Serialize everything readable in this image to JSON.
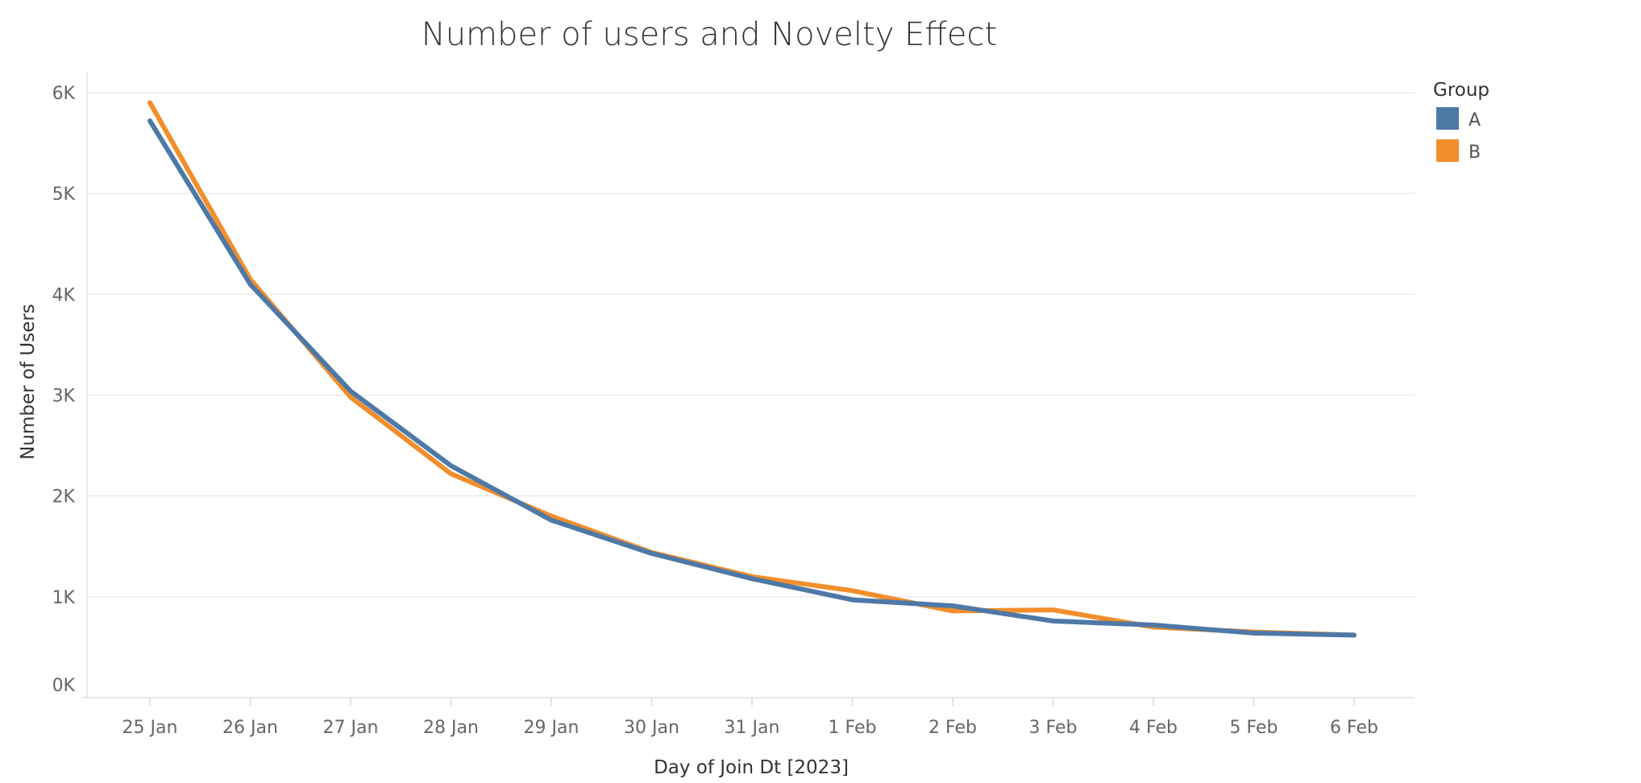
{
  "chart_data": {
    "type": "line",
    "title": "Number of users and Novelty Effect",
    "xlabel": "Day of Join Dt [2023]",
    "ylabel": "Number of Users",
    "categories": [
      "25 Jan",
      "26 Jan",
      "27 Jan",
      "28 Jan",
      "29 Jan",
      "30 Jan",
      "31 Jan",
      "1 Feb",
      "2 Feb",
      "3 Feb",
      "4 Feb",
      "5 Feb",
      "6 Feb"
    ],
    "y_ticks": [
      {
        "value": 0,
        "label": "0K"
      },
      {
        "value": 1000,
        "label": "1K"
      },
      {
        "value": 2000,
        "label": "2K"
      },
      {
        "value": 3000,
        "label": "3K"
      },
      {
        "value": 4000,
        "label": "4K"
      },
      {
        "value": 5000,
        "label": "5K"
      },
      {
        "value": 6000,
        "label": "6K"
      }
    ],
    "ylim": [
      0,
      6000
    ],
    "grid": true,
    "legend": {
      "title": "Group",
      "placement": "top-right"
    },
    "series": [
      {
        "name": "B",
        "color": "#f28e2b",
        "values": [
          5900,
          4150,
          2980,
          2220,
          1800,
          1440,
          1200,
          1060,
          860,
          870,
          700,
          650,
          620
        ]
      },
      {
        "name": "A",
        "color": "#4e79a7",
        "values": [
          5720,
          4100,
          3040,
          2300,
          1760,
          1430,
          1180,
          970,
          910,
          760,
          720,
          640,
          620
        ]
      }
    ],
    "legend_order": [
      "A",
      "B"
    ]
  }
}
